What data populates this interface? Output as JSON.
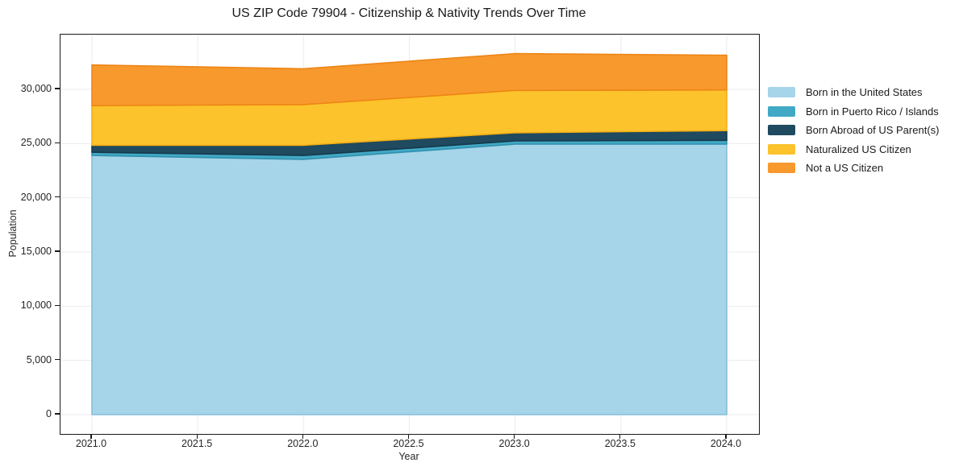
{
  "title": "US ZIP Code 79904 - Citizenship & Nativity Trends Over Time",
  "chart_data": {
    "type": "area",
    "stacked": true,
    "title": "US ZIP Code 79904 - Citizenship & Nativity Trends Over Time",
    "xlabel": "Year",
    "ylabel": "Population",
    "x": [
      2021,
      2022,
      2023,
      2024
    ],
    "series": [
      {
        "name": "Born in the United States",
        "color": "#a6d4e8",
        "edge": "#85bedb",
        "values": [
          23900,
          23550,
          24950,
          24950
        ]
      },
      {
        "name": "Born in Puerto Rico / Islands",
        "color": "#41a9c6",
        "edge": "#3191ad",
        "values": [
          300,
          350,
          300,
          350
        ]
      },
      {
        "name": "Born Abroad of US Parent(s)",
        "color": "#1f4a5f",
        "edge": "#16394b",
        "values": [
          650,
          950,
          750,
          900
        ]
      },
      {
        "name": "Naturalized US Citizen",
        "color": "#fcc32c",
        "edge": "#f3ae14",
        "values": [
          3650,
          3750,
          3900,
          3750
        ]
      },
      {
        "name": "Not a US Citizen",
        "color": "#f8992e",
        "edge": "#ed8514",
        "values": [
          3750,
          3300,
          3400,
          3200
        ]
      }
    ],
    "x_ticks": [
      {
        "v": 2021.0,
        "label": "2021.0"
      },
      {
        "v": 2021.5,
        "label": "2021.5"
      },
      {
        "v": 2022.0,
        "label": "2022.0"
      },
      {
        "v": 2022.5,
        "label": "2022.5"
      },
      {
        "v": 2023.0,
        "label": "2023.0"
      },
      {
        "v": 2023.5,
        "label": "2023.5"
      },
      {
        "v": 2024.0,
        "label": "2024.0"
      }
    ],
    "y_ticks": [
      {
        "v": 0,
        "label": "0"
      },
      {
        "v": 5000,
        "label": "5,000"
      },
      {
        "v": 10000,
        "label": "10,000"
      },
      {
        "v": 15000,
        "label": "15,000"
      },
      {
        "v": 20000,
        "label": "20,000"
      },
      {
        "v": 25000,
        "label": "25,000"
      },
      {
        "v": 30000,
        "label": "30,000"
      }
    ],
    "grid": true,
    "legend_position": "right-outside"
  },
  "colors": {
    "grid": "#ebebf1",
    "spine": "#1a1a1a",
    "text": "#262626",
    "background": "#ffffff"
  }
}
